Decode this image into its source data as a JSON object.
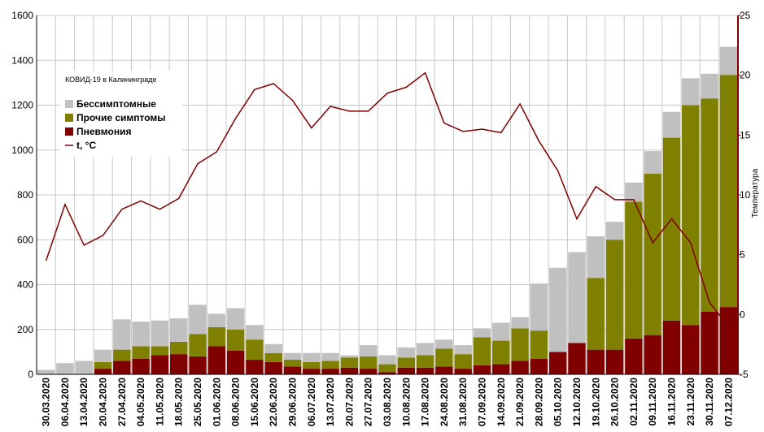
{
  "chart_data": {
    "type": "bar",
    "stacked": true,
    "title": "КОВИД-19 в Калининграде",
    "ylabel": "",
    "y2label": "Температура",
    "ylim": [
      0,
      1600
    ],
    "y2lim": [
      -5,
      25
    ],
    "yticks": [
      0,
      200,
      400,
      600,
      800,
      1000,
      1200,
      1400,
      1600
    ],
    "y2ticks": [
      -5,
      0,
      5,
      10,
      15,
      20,
      25
    ],
    "grid": true,
    "legend_position": "top-left",
    "categories": [
      "30.03.2020",
      "06.04.2020",
      "13.04.2020",
      "20.04.2020",
      "27.04.2020",
      "04.05.2020",
      "11.05.2020",
      "18.05.2020",
      "25.05.2020",
      "01.06.2020",
      "08.06.2020",
      "15.06.2020",
      "22.06.2020",
      "29.06.2020",
      "06.07.2020",
      "13.07.2020",
      "20.07.2020",
      "27.07.2020",
      "03.08.2020",
      "10.08.2020",
      "17.08.2020",
      "24.08.2020",
      "31.08.2020",
      "07.09.2020",
      "14.09.2020",
      "21.09.2020",
      "28.09.2020",
      "05.10.2020",
      "12.10.2020",
      "19.10.2020",
      "26.10.2020",
      "02.11.2020",
      "09.11.2020",
      "16.11.2020",
      "23.11.2020",
      "30.11.2020",
      "07.12.2020"
    ],
    "series": [
      {
        "name": "Пневмония",
        "color": "#800000",
        "values": [
          0,
          0,
          0,
          25,
          60,
          70,
          85,
          90,
          80,
          125,
          105,
          65,
          55,
          35,
          25,
          25,
          30,
          25,
          10,
          30,
          30,
          35,
          25,
          40,
          45,
          60,
          70,
          100,
          140,
          110,
          110,
          160,
          175,
          240,
          220,
          280,
          300
        ]
      },
      {
        "name": "Прочие симптомы",
        "color": "#808000",
        "values": [
          0,
          0,
          0,
          30,
          50,
          55,
          40,
          55,
          100,
          85,
          95,
          90,
          40,
          30,
          30,
          35,
          45,
          55,
          35,
          45,
          55,
          80,
          65,
          125,
          105,
          145,
          125,
          0,
          0,
          320,
          490,
          610,
          720,
          815,
          980,
          950,
          1035
        ]
      },
      {
        "name": "Бессимптомные",
        "color": "#c0c0c0",
        "values": [
          20,
          50,
          60,
          55,
          135,
          110,
          115,
          105,
          130,
          60,
          95,
          65,
          40,
          30,
          40,
          35,
          10,
          50,
          40,
          45,
          55,
          40,
          40,
          40,
          80,
          50,
          210,
          375,
          405,
          185,
          80,
          85,
          100,
          115,
          120,
          110,
          125
        ]
      }
    ],
    "line_series": {
      "name": "t, °C",
      "color": "#800000",
      "axis": "right",
      "values": [
        4.5,
        9.2,
        5.8,
        6.6,
        8.8,
        9.5,
        8.8,
        9.7,
        12.6,
        13.6,
        16.4,
        18.8,
        19.3,
        17.9,
        15.6,
        17.4,
        17,
        17,
        18.5,
        19,
        20.2,
        16,
        15.3,
        15.5,
        15.2,
        17.6,
        14.5,
        12,
        8,
        10.7,
        9.6,
        9.6,
        6,
        8,
        6,
        1,
        -1
      ]
    }
  }
}
